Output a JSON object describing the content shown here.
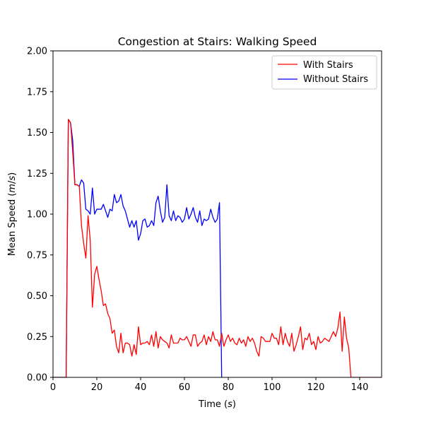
{
  "chart_data": {
    "type": "line",
    "title": "Congestion at Stairs: Walking Speed",
    "xlabel": "Time (s)",
    "ylabel": "Mean Speed (m/s)",
    "xlim": [
      0,
      150
    ],
    "ylim": [
      0,
      2.0
    ],
    "xticks": [
      0,
      20,
      40,
      60,
      80,
      100,
      120,
      140
    ],
    "yticks": [
      0.0,
      0.25,
      0.5,
      0.75,
      1.0,
      1.25,
      1.5,
      1.75,
      2.0
    ],
    "xtick_labels": [
      "0",
      "20",
      "40",
      "60",
      "80",
      "100",
      "120",
      "140"
    ],
    "ytick_labels": [
      "0.00",
      "0.25",
      "0.50",
      "0.75",
      "1.00",
      "1.25",
      "1.50",
      "1.75",
      "2.00"
    ],
    "legend_position": "top-right",
    "series": [
      {
        "name": "With Stairs",
        "color": "#ff0000",
        "x": [
          0,
          6,
          7,
          8,
          9,
          10,
          11,
          12,
          13,
          14,
          15,
          16,
          17,
          18,
          19,
          20,
          21,
          22,
          23,
          24,
          25,
          26,
          27,
          28,
          29,
          30,
          31,
          32,
          33,
          34,
          35,
          36,
          37,
          38,
          39,
          40,
          41,
          42,
          43,
          44,
          45,
          46,
          47,
          48,
          49,
          50,
          51,
          52,
          53,
          54,
          55,
          56,
          57,
          58,
          59,
          60,
          61,
          62,
          63,
          64,
          65,
          66,
          67,
          68,
          69,
          70,
          71,
          72,
          73,
          74,
          75,
          76,
          77,
          78,
          79,
          80,
          81,
          82,
          83,
          84,
          85,
          86,
          87,
          88,
          89,
          90,
          91,
          92,
          93,
          94,
          95,
          96,
          97,
          98,
          99,
          100,
          101,
          102,
          103,
          104,
          105,
          106,
          107,
          108,
          109,
          110,
          111,
          112,
          113,
          114,
          115,
          116,
          117,
          118,
          119,
          120,
          121,
          122,
          123,
          124,
          125,
          126,
          127,
          128,
          129,
          130,
          131,
          132,
          133,
          134,
          135,
          136,
          137,
          138,
          140,
          150
        ],
        "y": [
          0,
          0,
          1.58,
          1.56,
          1.38,
          1.18,
          1.18,
          1.17,
          0.93,
          0.82,
          0.73,
          0.99,
          0.84,
          0.43,
          0.63,
          0.68,
          0.6,
          0.53,
          0.44,
          0.45,
          0.39,
          0.36,
          0.27,
          0.29,
          0.19,
          0.15,
          0.27,
          0.15,
          0.21,
          0.21,
          0.2,
          0.13,
          0.2,
          0.14,
          0.31,
          0.2,
          0.21,
          0.21,
          0.22,
          0.2,
          0.26,
          0.19,
          0.28,
          0.18,
          0.25,
          0.23,
          0.22,
          0.21,
          0.18,
          0.26,
          0.21,
          0.21,
          0.21,
          0.24,
          0.23,
          0.23,
          0.25,
          0.22,
          0.19,
          0.26,
          0.26,
          0.19,
          0.21,
          0.22,
          0.26,
          0.2,
          0.25,
          0.22,
          0.28,
          0.23,
          0.23,
          0.19,
          0.27,
          0.19,
          0.23,
          0.26,
          0.22,
          0.24,
          0.21,
          0.2,
          0.24,
          0.21,
          0.23,
          0.19,
          0.25,
          0.22,
          0.24,
          0.21,
          0.16,
          0.13,
          0.25,
          0.24,
          0.22,
          0.22,
          0.22,
          0.27,
          0.24,
          0.24,
          0.2,
          0.31,
          0.2,
          0.27,
          0.22,
          0.19,
          0.27,
          0.16,
          0.2,
          0.25,
          0.31,
          0.17,
          0.24,
          0.23,
          0.27,
          0.2,
          0.22,
          0.17,
          0.25,
          0.21,
          0.22,
          0.24,
          0.23,
          0.22,
          0.25,
          0.28,
          0.25,
          0.3,
          0.4,
          0.16,
          0.37,
          0.24,
          0.18,
          0.0,
          0.0,
          0.0,
          0.0,
          0.0
        ]
      },
      {
        "name": "Without Stairs",
        "color": "#0000ff",
        "x": [
          0,
          6,
          7,
          8,
          9,
          10,
          11,
          12,
          13,
          14,
          15,
          16,
          17,
          18,
          19,
          20,
          21,
          22,
          23,
          24,
          25,
          26,
          27,
          28,
          29,
          30,
          31,
          32,
          33,
          34,
          35,
          36,
          37,
          38,
          39,
          40,
          41,
          42,
          43,
          44,
          45,
          46,
          47,
          48,
          49,
          50,
          51,
          52,
          53,
          54,
          55,
          56,
          57,
          58,
          59,
          60,
          61,
          62,
          63,
          64,
          65,
          66,
          67,
          68,
          69,
          70,
          71,
          72,
          73,
          74,
          75,
          76,
          77
        ],
        "y": [
          0,
          0,
          1.58,
          1.56,
          1.45,
          1.18,
          1.18,
          1.17,
          1.21,
          1.19,
          1.03,
          1.02,
          1.0,
          1.16,
          1.0,
          1.03,
          1.03,
          1.03,
          1.06,
          1.02,
          0.98,
          1.03,
          1.02,
          1.12,
          1.07,
          1.08,
          1.12,
          1.05,
          1.02,
          0.97,
          0.92,
          0.96,
          0.92,
          0.96,
          0.84,
          0.88,
          0.96,
          0.97,
          0.92,
          0.93,
          0.96,
          0.93,
          1.07,
          1.11,
          1.02,
          0.95,
          0.98,
          1.18,
          0.99,
          0.96,
          1.02,
          0.96,
          0.99,
          0.98,
          0.95,
          0.97,
          1.04,
          0.97,
          1.0,
          1.04,
          0.98,
          0.95,
          1.02,
          0.93,
          0.97,
          0.96,
          0.97,
          1.03,
          0.98,
          0.95,
          0.97,
          1.07,
          0.0
        ]
      }
    ]
  }
}
